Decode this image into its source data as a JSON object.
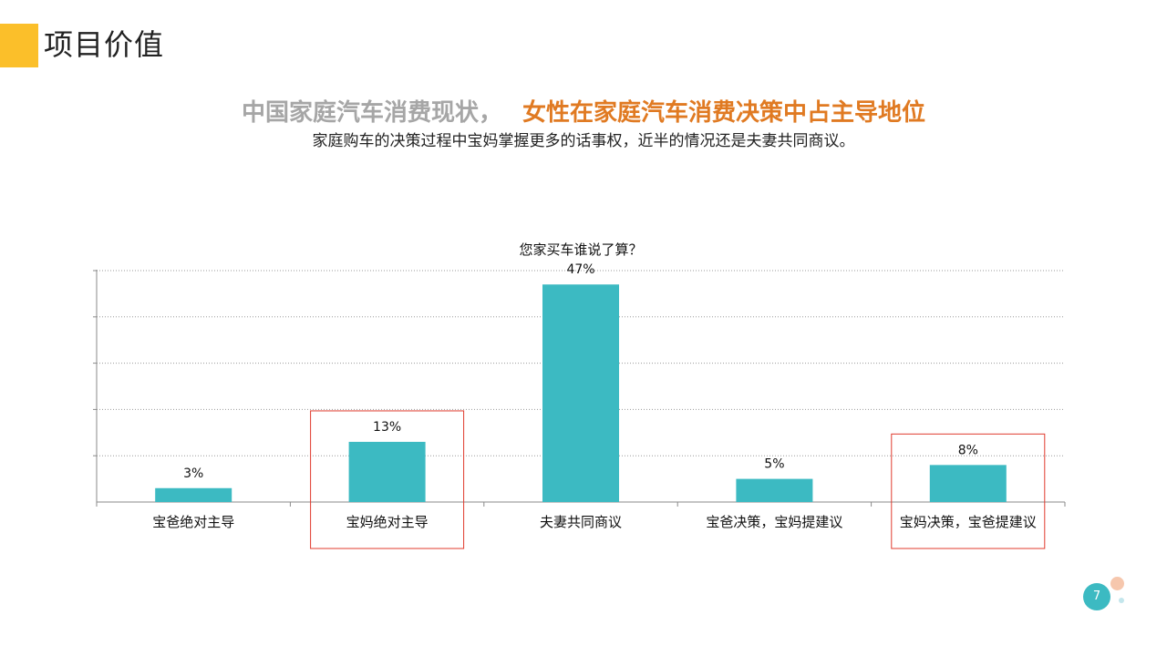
{
  "header": {
    "title": "项目价值"
  },
  "headline": {
    "gray_text": "中国家庭汽车消费现状，",
    "highlight_text": "女性在家庭汽车消费决策中占主导地位",
    "subtitle": "家庭购车的决策过程中宝妈掌握更多的话事权，近半的情况还是夫妻共同商议。"
  },
  "colors": {
    "accent": "#fbbf2a",
    "highlight": "#e07a22",
    "bar": "#3cbac2",
    "annotation_box": "#e03b2e"
  },
  "chart_data": {
    "type": "bar",
    "title": "您家买车谁说了算？",
    "categories": [
      "宝爸绝对主导",
      "宝妈绝对主导",
      "夫妻共同商议",
      "宝爸决策，宝妈提建议",
      "宝妈决策，宝爸提建议"
    ],
    "values": [
      3,
      13,
      47,
      5,
      8
    ],
    "data_labels": [
      "3%",
      "13%",
      "47%",
      "5%",
      "8%"
    ],
    "ylim": [
      0,
      50
    ],
    "grid": true,
    "highlighted_categories": [
      "宝妈绝对主导",
      "宝妈决策，宝爸提建议"
    ]
  },
  "footer": {
    "page_number": "7"
  }
}
